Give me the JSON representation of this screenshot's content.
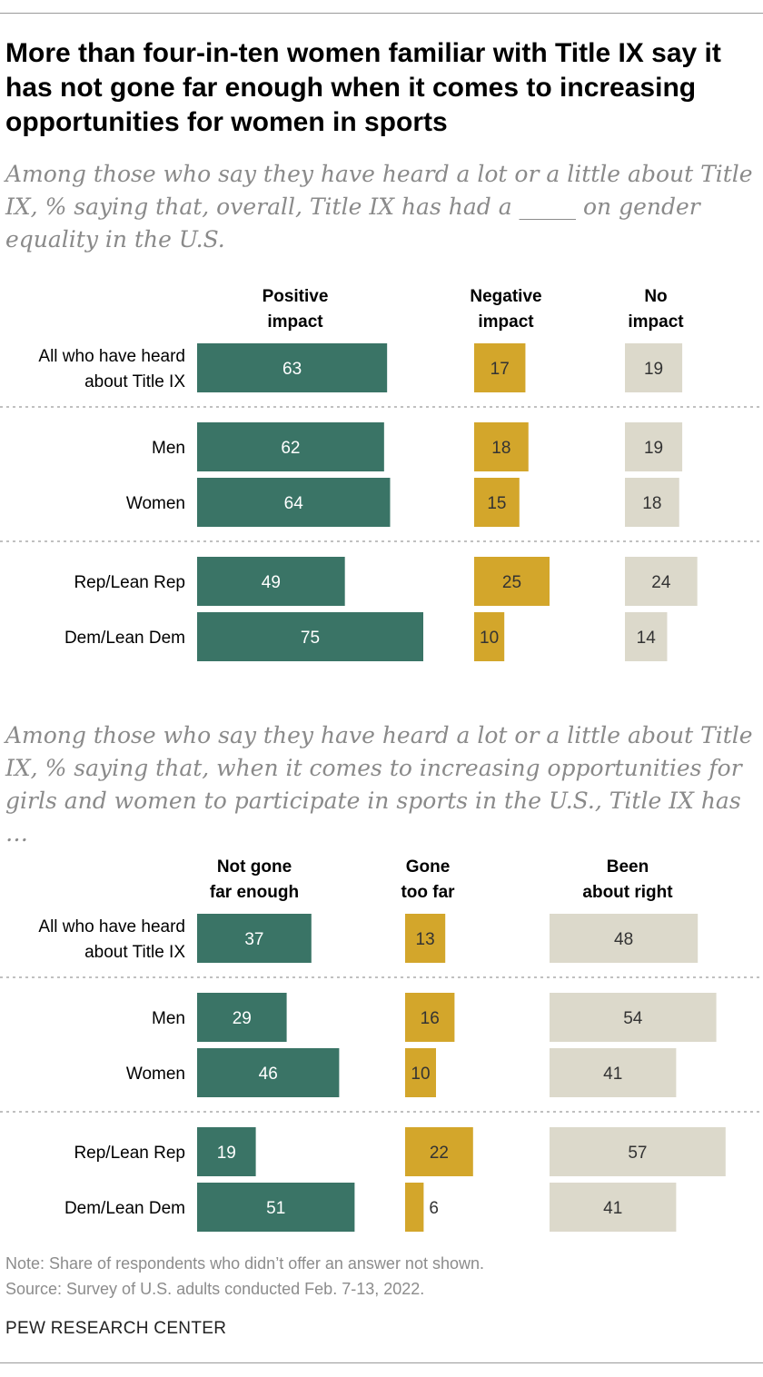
{
  "title": "More than four-in-ten women familiar with Title IX say it has not gone far enough when it comes to increasing opportunities for women in sports",
  "colors": {
    "positive": "#3a7466",
    "negative": "#d3a62b",
    "neutral": "#dcd9cb",
    "label_on_dark": "#ffffff",
    "label_on_light": "#333333"
  },
  "chart_data": [
    {
      "type": "bar",
      "subtitle": "Among those who say they have heard a lot or a little about Title IX, % saying that, overall, Title IX has had a _____ on gender equality in the U.S.",
      "categories": [
        [
          "All who have heard",
          "about Title IX"
        ],
        [
          "Men"
        ],
        [
          "Women"
        ],
        [
          "Rep/Lean Rep"
        ],
        [
          "Dem/Lean Dem"
        ]
      ],
      "groups": [
        [
          0
        ],
        [
          1,
          2
        ],
        [
          3,
          4
        ]
      ],
      "series": [
        {
          "name": [
            "Positive",
            "impact"
          ],
          "values": [
            63,
            62,
            64,
            49,
            75
          ]
        },
        {
          "name": [
            "Negative",
            "impact"
          ],
          "values": [
            17,
            18,
            15,
            25,
            10
          ]
        },
        {
          "name": [
            "No",
            "impact"
          ],
          "values": [
            19,
            19,
            18,
            24,
            14
          ]
        }
      ]
    },
    {
      "type": "bar",
      "subtitle": "Among those who say they have heard a lot or a little about Title IX, % saying that, when it comes to increasing opportunities for girls and women to participate in sports in the U.S., Title IX has …",
      "categories": [
        [
          "All who have heard",
          "about Title IX"
        ],
        [
          "Men"
        ],
        [
          "Women"
        ],
        [
          "Rep/Lean Rep"
        ],
        [
          "Dem/Lean Dem"
        ]
      ],
      "groups": [
        [
          0
        ],
        [
          1,
          2
        ],
        [
          3,
          4
        ]
      ],
      "series": [
        {
          "name": [
            "Not gone",
            "far enough"
          ],
          "values": [
            37,
            29,
            46,
            19,
            51
          ]
        },
        {
          "name": [
            "Gone",
            "too far"
          ],
          "values": [
            13,
            16,
            10,
            22,
            6
          ]
        },
        {
          "name": [
            "Been",
            "about right"
          ],
          "values": [
            48,
            54,
            41,
            57,
            41
          ]
        }
      ]
    }
  ],
  "notes": {
    "note": "Note: Share of respondents who didn’t offer an answer not shown.",
    "source": "Source: Survey of U.S. adults conducted Feb. 7-13, 2022."
  },
  "brand": "PEW RESEARCH CENTER"
}
